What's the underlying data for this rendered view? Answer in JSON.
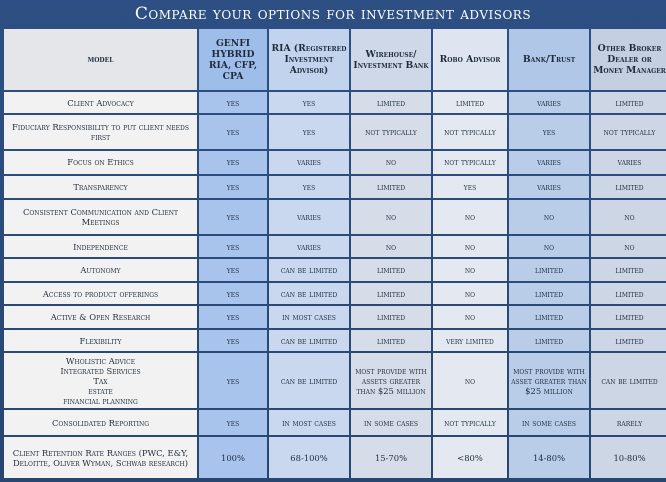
{
  "title": "Compare your options for investment advisors",
  "header": {
    "model": "model",
    "genfi": "GENFI HYBRID RIA, CFP, CPA",
    "ria": "RIA (Registered Investment Advisor)",
    "wire": "Wirehouse/ Investment Bank",
    "robo": "Robo Advisor",
    "bank": "Bank/Trust",
    "other": "Other Broker Dealer or Money Manager"
  },
  "rows": [
    {
      "model": "Client Advocacy",
      "genfi": "yes",
      "ria": "yes",
      "wire": "limited",
      "robo": "limited",
      "bank": "varies",
      "other": "limited"
    },
    {
      "model": "Fiduciary Responsibility to put client needs first",
      "genfi": "yes",
      "ria": "yes",
      "wire": "not typically",
      "robo": "not typically",
      "bank": "yes",
      "other": "not typically"
    },
    {
      "model": "Focus on Ethics",
      "genfi": "yes",
      "ria": "varies",
      "wire": "no",
      "robo": "not typically",
      "bank": "varies",
      "other": "varies"
    },
    {
      "model": "Transparency",
      "genfi": "yes",
      "ria": "yes",
      "wire": "limited",
      "robo": "yes",
      "bank": "varies",
      "other": "limited"
    },
    {
      "model": "Consistent Communication and Client Meetings",
      "genfi": "yes",
      "ria": "varies",
      "wire": "no",
      "robo": "no",
      "bank": "no",
      "other": "no"
    },
    {
      "model": "Independence",
      "genfi": "yes",
      "ria": "varies",
      "wire": "no",
      "robo": "no",
      "bank": "no",
      "other": "no"
    },
    {
      "model": "Autonomy",
      "genfi": "yes",
      "ria": "can be limited",
      "wire": "limited",
      "robo": "no",
      "bank": "limited",
      "other": "limited"
    },
    {
      "model": "Access to product offerings",
      "genfi": "yes",
      "ria": "can be limited",
      "wire": "limited",
      "robo": "no",
      "bank": "limited",
      "other": "limited"
    },
    {
      "model": "Active & Open Research",
      "genfi": "yes",
      "ria": "in most  cases",
      "wire": "limited",
      "robo": "no",
      "bank": "limited",
      "other": "limited"
    },
    {
      "model": "Flexibility",
      "genfi": "yes",
      "ria": "can be limited",
      "wire": "limited",
      "robo": "very limited",
      "bank": "limited",
      "other": "limited"
    },
    {
      "model_lines": [
        "Wholistic Advice",
        "Integrated Services",
        "Tax",
        "estate",
        "financial planning"
      ],
      "genfi": "yes",
      "ria": "can be limited",
      "wire": "most provide with assets greater than $25 million",
      "robo": "no",
      "bank": "most provide with asset greater than $25 million",
      "other": "can be limited"
    },
    {
      "model": "Consolidated Reporting",
      "genfi": "yes",
      "ria": "in most cases",
      "wire": "in some cases",
      "robo": "not typically",
      "bank": "in some cases",
      "other": "rarely"
    },
    {
      "model": "Client Retention Rate Ranges (PWC, E&Y, Deloitte, Oliver Wyman, Schwab research)",
      "genfi": "100%",
      "ria": "68-100%",
      "wire": "15-70%",
      "robo": "<80%",
      "bank": "14-80%",
      "other": "10-80%"
    }
  ]
}
